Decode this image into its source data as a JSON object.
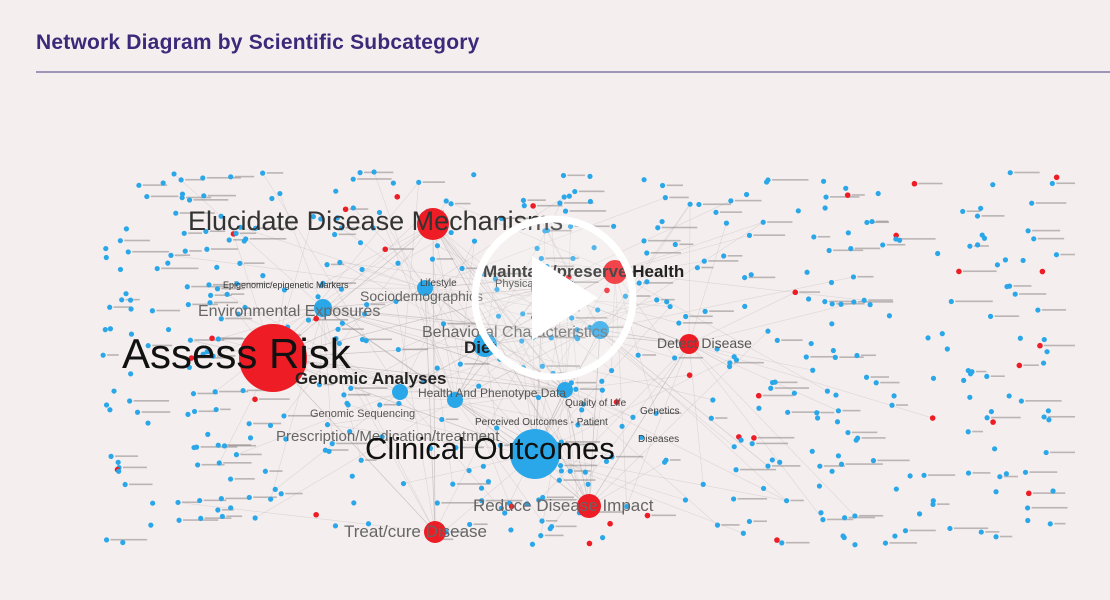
{
  "slide": {
    "title": "Network Diagram by Scientific Subcategory"
  },
  "network": {
    "labels": {
      "elucidate": "Elucidate Disease Mechanisms",
      "maintain": "Maintain/preserve Health",
      "physical": "Physical Activity",
      "lifestyle": "Lifestyle",
      "epigenomic": "Epigenomic/epigenetic Markers",
      "sociodemo": "Sociodemographics",
      "environmental": "Environmental Exposures",
      "behavioral": "Behavioral Characteristics",
      "assess_risk": "Assess Risk",
      "diet": "Diet",
      "detect": "Detect Disease",
      "genomic_analyses": "Genomic Analyses",
      "health_phenotype": "Health And Phenotype Data",
      "quality": "Quality of Life",
      "genetics": "Genetics",
      "genomic_seq": "Genomic Sequencing",
      "perceived": "Perceived Outcomes - Patient",
      "prescription": "Prescription/Medication/treatment",
      "diseases": "Diseases",
      "clinical": "Clinical Outcomes",
      "reduce": "Reduce Disease Impact",
      "treat": "Treat/cure Disease"
    },
    "colors": {
      "red": "#ee1c24",
      "blue": "#2aa7e8",
      "edge": "#c9c2c2"
    }
  },
  "video": {
    "play_icon": "play-icon"
  }
}
